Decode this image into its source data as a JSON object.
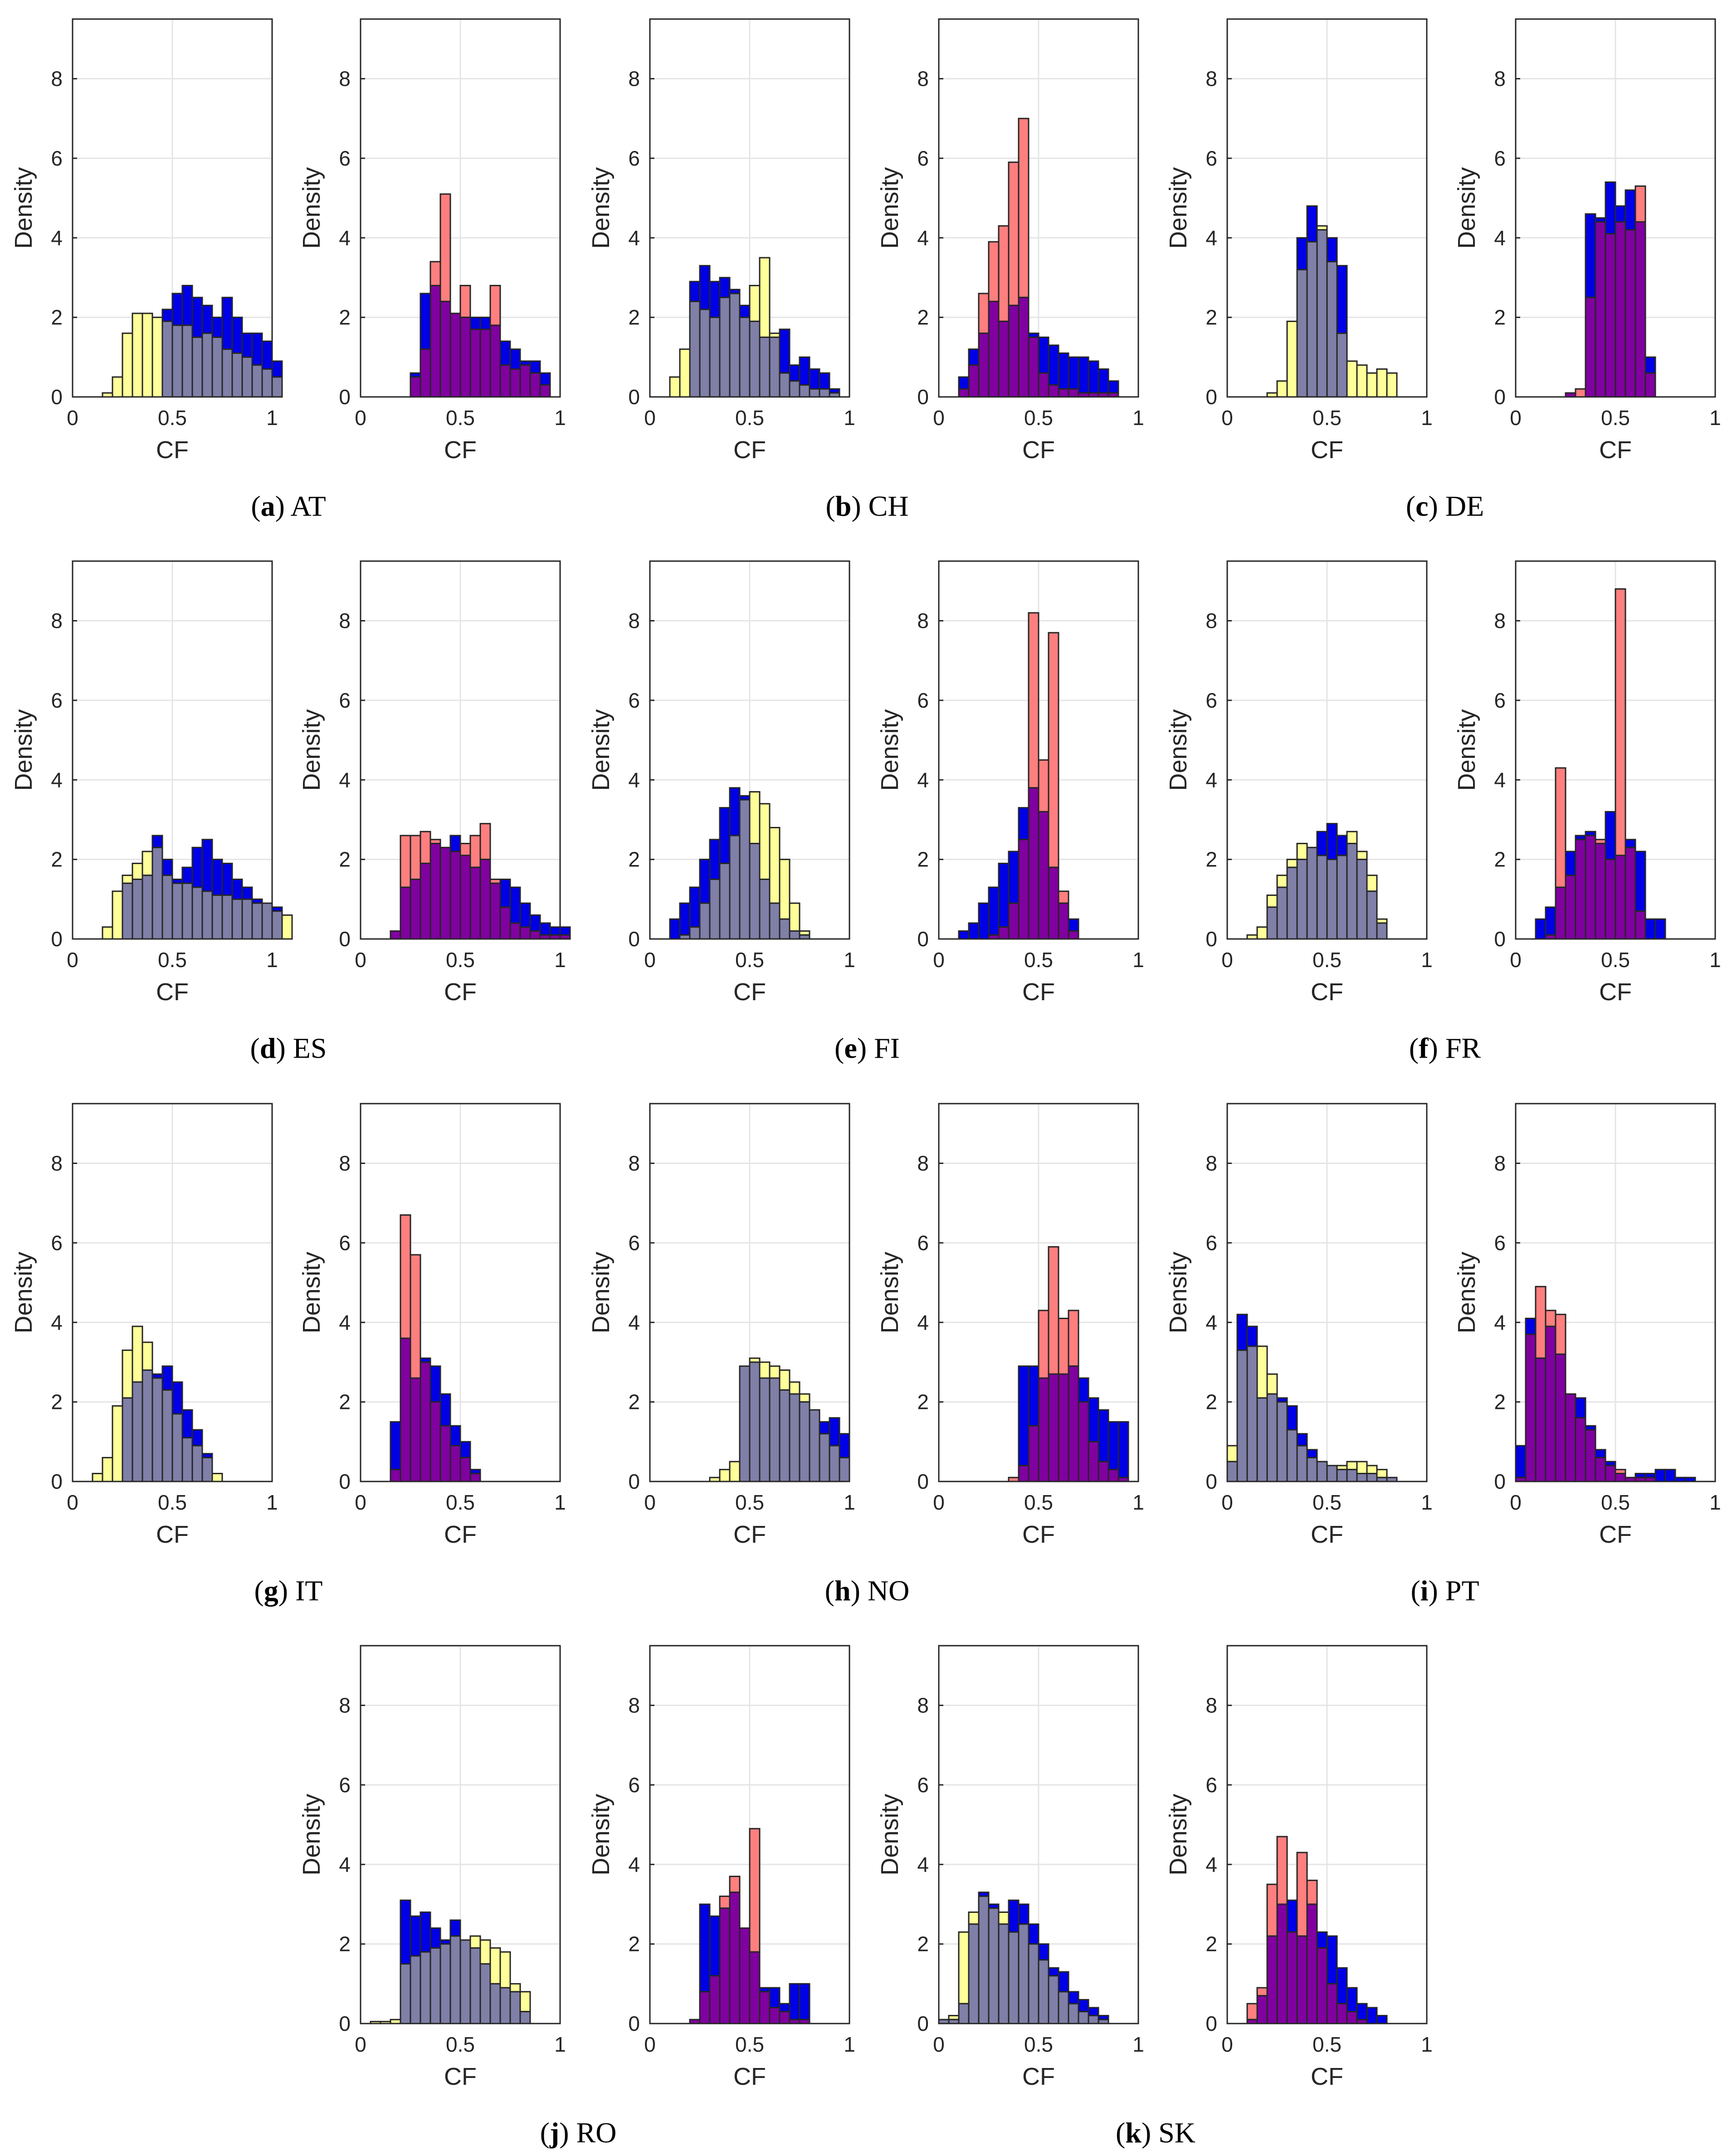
{
  "chart_data": {
    "type": "histogram",
    "colors": {
      "yellow": "#ffff99",
      "blue": "#0000e6",
      "red": "#ff7f7f",
      "overlap_blue_yellow": "#7f7fa8",
      "overlap_blue_red": "#8000a0",
      "edge": "#262626",
      "grid": "#e5e5e5"
    },
    "axes_common": {
      "xlabel": "CF",
      "ylabel": "Density",
      "xlim": [
        0,
        1
      ],
      "ylim": [
        0,
        9.5
      ],
      "xticks": [
        "0",
        "0.5",
        "1"
      ],
      "yticks": [
        "0",
        "2",
        "4",
        "6",
        "8"
      ],
      "bin_width": 0.05
    },
    "groups": [
      {
        "letter": "a",
        "country": "AT",
        "panels": [
          {
            "name": "AT-left",
            "kind": "yellow-blue",
            "start": 0.15,
            "blue": [
              0,
              0,
              0,
              0,
              0,
              0,
              2.2,
              2.6,
              2.8,
              2.5,
              2.3,
              2.0,
              2.5,
              2.0,
              1.6,
              1.6,
              1.4,
              0.9
            ],
            "yellow": [
              0.1,
              0.5,
              1.6,
              2.1,
              2.1,
              2.0,
              1.9,
              1.8,
              1.8,
              1.5,
              1.6,
              1.5,
              1.2,
              1.1,
              1.0,
              0.8,
              0.7,
              0.5
            ]
          },
          {
            "name": "AT-right",
            "kind": "red-blue",
            "start": 0.25,
            "blue": [
              0.6,
              2.6,
              2.8,
              2.4,
              2.1,
              2.0,
              2.0,
              2.0,
              1.8,
              1.4,
              1.2,
              0.9,
              0.9,
              0.6
            ],
            "red": [
              0.5,
              1.2,
              3.4,
              5.1,
              2.1,
              2.8,
              1.7,
              1.7,
              2.8,
              0.8,
              0.7,
              0.8,
              0.6,
              0.3
            ]
          }
        ]
      },
      {
        "letter": "b",
        "country": "CH",
        "panels": [
          {
            "name": "CH-left",
            "kind": "yellow-blue",
            "start": 0.1,
            "blue": [
              0,
              0,
              2.9,
              3.3,
              2.9,
              3.0,
              2.7,
              2.3,
              1.9,
              1.5,
              1.5,
              1.7,
              0.8,
              1.0,
              0.7,
              0.6,
              0.2
            ],
            "yellow": [
              0.5,
              1.2,
              2.4,
              2.2,
              2.0,
              2.5,
              2.6,
              2.0,
              2.8,
              3.5,
              1.6,
              0.6,
              0.4,
              0.3,
              0.2,
              0.2,
              0.1
            ]
          },
          {
            "name": "CH-right",
            "kind": "red-blue",
            "start": 0.1,
            "blue": [
              0.5,
              1.2,
              1.6,
              2.4,
              1.9,
              2.3,
              2.5,
              1.6,
              1.5,
              1.3,
              1.1,
              1.0,
              1.0,
              0.9,
              0.7,
              0.4
            ],
            "red": [
              0.2,
              0.8,
              2.6,
              3.9,
              4.3,
              5.9,
              7.0,
              1.5,
              0.6,
              0.3,
              0.2,
              0.2,
              0.1,
              0.1,
              0.1,
              0.1
            ]
          }
        ]
      },
      {
        "letter": "c",
        "country": "DE",
        "panels": [
          {
            "name": "DE-left",
            "kind": "yellow-blue",
            "start": 0.2,
            "blue": [
              0,
              0,
              0,
              4.0,
              4.8,
              4.2,
              4.0,
              3.3,
              0,
              0,
              0,
              0,
              0
            ],
            "yellow": [
              0.1,
              0.4,
              1.9,
              3.2,
              3.9,
              4.3,
              3.4,
              1.6,
              0.9,
              0.8,
              0.6,
              0.7,
              0.6
            ]
          },
          {
            "name": "DE-right",
            "kind": "red-blue",
            "start": 0.2,
            "blue": [
              0,
              0.1,
              0,
              4.6,
              4.5,
              5.4,
              4.8,
              5.2,
              4.4,
              1.0
            ],
            "red": [
              0,
              0.1,
              0.2,
              2.5,
              4.4,
              4.1,
              4.4,
              4.2,
              5.3,
              0.6
            ]
          }
        ]
      }
    ],
    "captions": [
      "(a) AT",
      "(b) CH",
      "(c) DE",
      "(d) ES",
      "(e) FI",
      "(f) FR",
      "(g) IT",
      "(h) NO",
      "(i) PT",
      "(j) RO",
      "(k) SK"
    ]
  },
  "rows": [
    {
      "captions": [
        {
          "letter": "a",
          "country": "AT"
        },
        {
          "letter": "b",
          "country": "CH"
        },
        {
          "letter": "c",
          "country": "DE"
        }
      ]
    },
    {
      "captions": [
        {
          "letter": "d",
          "country": "ES"
        },
        {
          "letter": "e",
          "country": "FI"
        },
        {
          "letter": "f",
          "country": "FR"
        }
      ]
    },
    {
      "captions": [
        {
          "letter": "g",
          "country": "IT"
        },
        {
          "letter": "h",
          "country": "NO"
        },
        {
          "letter": "i",
          "country": "PT"
        }
      ]
    },
    {
      "captions": [
        {
          "letter": "j",
          "country": "RO"
        },
        {
          "letter": "k",
          "country": "SK"
        }
      ]
    }
  ],
  "panels": [
    {
      "id": "ES-left",
      "kind": "yellow-blue",
      "start": 0.15,
      "blue": [
        0,
        0,
        1.4,
        1.5,
        1.6,
        2.6,
        2.0,
        1.5,
        1.8,
        2.3,
        2.5,
        2.0,
        1.9,
        1.5,
        1.3,
        1.0,
        0.9,
        0.8
      ],
      "yellow": [
        0.3,
        1.2,
        1.6,
        1.9,
        2.2,
        2.3,
        1.6,
        1.4,
        1.4,
        1.3,
        1.2,
        1.1,
        1.1,
        1.0,
        1.0,
        0.9,
        0.9,
        0.7,
        0.6
      ]
    },
    {
      "id": "ES-right",
      "kind": "red-blue",
      "start": 0.15,
      "blue": [
        0.2,
        1.3,
        1.5,
        1.9,
        2.4,
        2.3,
        2.6,
        2.1,
        1.8,
        2.0,
        1.4,
        1.5,
        1.3,
        0.9,
        0.6,
        0.4,
        0.3,
        0.3
      ],
      "red": [
        0.2,
        2.6,
        2.6,
        2.7,
        2.5,
        2.3,
        2.2,
        2.4,
        2.6,
        2.9,
        1.5,
        0.8,
        0.4,
        0.3,
        0.2,
        0.1,
        0.1,
        0.1
      ]
    },
    {
      "id": "FI-left",
      "kind": "yellow-blue",
      "start": 0.1,
      "blue": [
        0.5,
        0.9,
        1.3,
        2.0,
        2.5,
        3.3,
        3.8,
        3.6,
        2.4,
        1.5,
        0.9,
        0.5,
        0.2,
        0.1
      ],
      "yellow": [
        0,
        0.1,
        0.3,
        0.9,
        1.5,
        1.9,
        2.6,
        3.5,
        3.7,
        3.4,
        2.8,
        2.0,
        0.9,
        0.2
      ]
    },
    {
      "id": "FI-right",
      "kind": "red-blue",
      "start": 0.1,
      "blue": [
        0.2,
        0.4,
        0.9,
        1.3,
        1.9,
        2.2,
        3.3,
        3.8,
        3.2,
        1.8,
        0.9,
        0.5
      ],
      "red": [
        0,
        0,
        0,
        0.1,
        0.3,
        0.9,
        2.5,
        8.2,
        4.5,
        7.7,
        1.2,
        0.2
      ]
    },
    {
      "id": "FR-left",
      "kind": "yellow-blue",
      "start": 0.1,
      "blue": [
        0,
        0,
        0.8,
        1.3,
        1.8,
        2.0,
        2.3,
        2.7,
        2.9,
        2.6,
        2.4,
        2.0,
        1.2,
        0.4
      ],
      "yellow": [
        0.1,
        0.3,
        1.1,
        1.6,
        2.0,
        2.4,
        2.3,
        2.1,
        2.0,
        2.1,
        2.7,
        2.2,
        1.6,
        0.5
      ]
    },
    {
      "id": "FR-right",
      "kind": "red-blue",
      "start": 0.1,
      "blue": [
        0.5,
        0.8,
        1.3,
        2.2,
        2.6,
        2.7,
        2.4,
        3.2,
        2.1,
        2.5,
        2.2,
        0.5,
        0.5
      ],
      "red": [
        0,
        0.1,
        4.3,
        1.6,
        2.5,
        2.6,
        2.5,
        2.0,
        8.8,
        2.3,
        0.7,
        0,
        0
      ]
    },
    {
      "id": "IT-left",
      "kind": "yellow-blue",
      "start": 0.1,
      "blue": [
        0,
        0,
        0,
        2.1,
        2.5,
        2.8,
        2.7,
        2.9,
        2.5,
        1.8,
        1.3,
        0.7,
        0
      ],
      "yellow": [
        0.2,
        0.6,
        1.9,
        3.3,
        3.9,
        3.5,
        2.6,
        2.3,
        1.7,
        1.1,
        0.9,
        0.6,
        0.2
      ]
    },
    {
      "id": "IT-right",
      "kind": "red-blue",
      "start": 0.15,
      "blue": [
        1.5,
        3.6,
        2.6,
        3.1,
        2.9,
        2.2,
        1.4,
        1.0,
        0.3
      ],
      "red": [
        0.3,
        6.7,
        5.7,
        3.0,
        2.0,
        1.4,
        0.9,
        0.6,
        0.2
      ]
    },
    {
      "id": "NO-left",
      "kind": "yellow-blue",
      "start": 0.3,
      "blue": [
        0,
        0,
        0,
        2.9,
        3.0,
        2.6,
        2.6,
        2.3,
        2.2,
        2.0,
        1.8,
        1.5,
        1.6,
        1.2
      ],
      "yellow": [
        0.1,
        0.3,
        0.5,
        2.9,
        3.1,
        3.0,
        2.9,
        2.8,
        2.5,
        2.2,
        1.8,
        1.2,
        0.9,
        0.6
      ]
    },
    {
      "id": "NO-right",
      "kind": "red-blue",
      "start": 0.35,
      "blue": [
        0,
        2.9,
        2.9,
        2.6,
        2.7,
        2.7,
        2.9,
        2.6,
        2.1,
        1.8,
        1.5,
        1.5
      ],
      "red": [
        0.1,
        0.4,
        1.4,
        4.3,
        5.9,
        4.1,
        4.3,
        2.0,
        1.0,
        0.5,
        0.3,
        0.1
      ]
    },
    {
      "id": "PT-left",
      "kind": "yellow-blue",
      "start": 0,
      "blue": [
        0.5,
        4.2,
        3.9,
        2.1,
        2.2,
        2.1,
        1.9,
        1.2,
        0.8,
        0.5,
        0.4,
        0.3,
        0.3,
        0.2,
        0.2,
        0.1,
        0.1
      ],
      "yellow": [
        0.9,
        3.3,
        3.4,
        3.4,
        2.7,
        2.0,
        1.3,
        0.9,
        0.6,
        0.5,
        0.4,
        0.4,
        0.5,
        0.5,
        0.4,
        0.3,
        0.1
      ]
    },
    {
      "id": "PT-right",
      "kind": "red-blue",
      "start": 0,
      "blue": [
        0.9,
        4.1,
        3.1,
        3.9,
        3.2,
        2.2,
        2.1,
        1.4,
        0.8,
        0.5,
        0.2,
        0.1,
        0.2,
        0.2,
        0.3,
        0.3,
        0.1,
        0.1
      ],
      "red": [
        0.1,
        3.7,
        4.9,
        4.3,
        4.2,
        2.2,
        1.6,
        1.3,
        0.6,
        0.4,
        0.3,
        0.1,
        0.1,
        0.1,
        0,
        0,
        0,
        0
      ]
    },
    {
      "id": "RO-left",
      "kind": "yellow-blue",
      "start": 0.05,
      "blue": [
        0,
        0,
        0,
        3.1,
        2.7,
        2.8,
        2.4,
        2.1,
        2.6,
        2.1,
        1.9,
        1.5,
        1.0,
        0.9,
        0.8,
        0.3
      ],
      "yellow": [
        0.05,
        0.05,
        0.1,
        1.5,
        1.7,
        1.8,
        1.9,
        2.0,
        2.2,
        2.1,
        2.2,
        2.1,
        1.9,
        1.8,
        1.0,
        0.8
      ]
    },
    {
      "id": "RO-right",
      "kind": "red-blue",
      "start": 0.2,
      "blue": [
        0.1,
        3.0,
        2.7,
        2.9,
        3.3,
        2.4,
        1.8,
        0.9,
        0.9,
        0.5,
        1.0,
        1.0
      ],
      "red": [
        0.1,
        0.8,
        1.2,
        3.2,
        3.7,
        2.4,
        4.9,
        0.8,
        0.4,
        0.3,
        0.1,
        0.1
      ]
    },
    {
      "id": "SK-left",
      "kind": "yellow-blue",
      "start": 0,
      "blue": [
        0.1,
        0.1,
        0.5,
        2.5,
        3.3,
        3.0,
        2.5,
        3.1,
        3.0,
        2.5,
        2.0,
        1.4,
        1.3,
        0.8,
        0.6,
        0.4,
        0.2
      ],
      "yellow": [
        0.1,
        0.2,
        2.3,
        2.8,
        3.2,
        2.9,
        2.8,
        2.3,
        2.5,
        2.0,
        1.6,
        1.2,
        0.8,
        0.5,
        0.3,
        0.2,
        0.1
      ]
    },
    {
      "id": "SK-right",
      "kind": "red-blue",
      "start": 0.1,
      "blue": [
        0.1,
        0.7,
        2.2,
        3.0,
        3.1,
        2.2,
        3.0,
        2.3,
        2.2,
        1.4,
        0.9,
        0.5,
        0.4,
        0.2
      ],
      "red": [
        0.5,
        0.9,
        3.5,
        4.7,
        2.3,
        4.3,
        3.6,
        1.9,
        1.0,
        0.5,
        0.3,
        0.1,
        0,
        0
      ]
    }
  ]
}
